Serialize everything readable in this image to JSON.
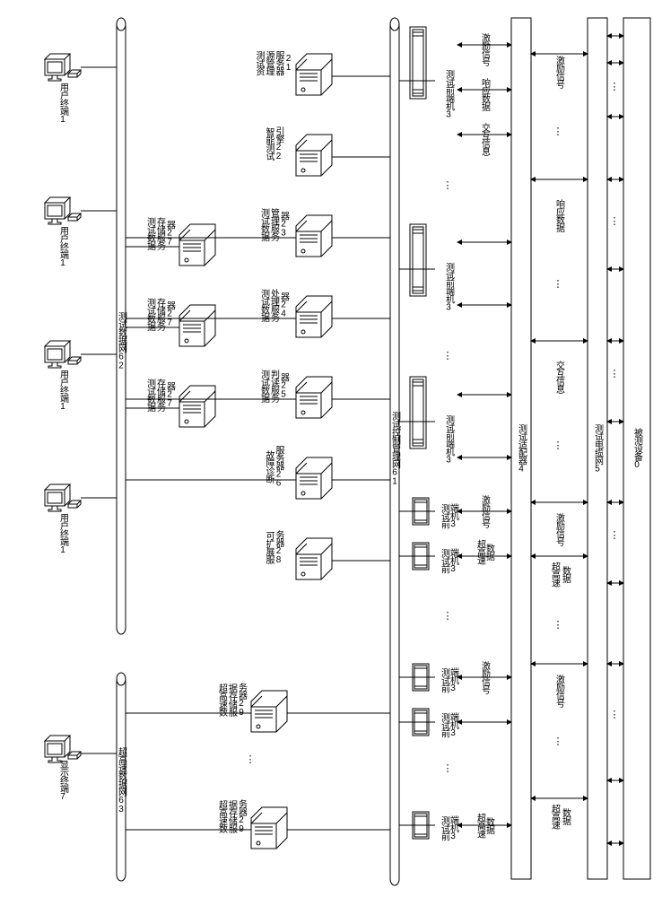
{
  "dut": {
    "label": "被测设备0"
  },
  "cable": {
    "label": "测试电缆网5"
  },
  "adapter": {
    "label": "测试适配器4"
  },
  "net1": {
    "label": "测试控制管理网61"
  },
  "net2": {
    "label": "测试数据网62"
  },
  "net3": {
    "label": "超高速数据网63"
  },
  "sig": {
    "ex": "激励信号",
    "exData": "超高速\n数据",
    "resp": "响应数据",
    "inter": "交互信息",
    "hs": "超高速\n数据"
  },
  "feGroups": [
    {
      "ex": "激励信号",
      "resp": "响应数据",
      "inter": "交互信息",
      "fe": "测试前端机3"
    },
    {
      "fe": "测试前端机3"
    },
    {
      "fe": "测试前端机3"
    },
    {
      "ex": "激励信号",
      "hs": "超高速\n数据",
      "feA": "测试前\n端机3",
      "feB": "测试前\n端机3"
    },
    {
      "ex": "激励信号",
      "feA": "测试前\n端机3",
      "feB": "测试前\n端机3"
    },
    {
      "hs": "超高速\n数据",
      "fe": "测试前\n端机3"
    }
  ],
  "servers": [
    {
      "l": "测试资\n源管理\n服务器\n21"
    },
    {
      "l": "智能测试\n引擎22"
    },
    {
      "l": "测试数据\n管理服务\n器23"
    },
    {
      "l": "测试数据\n处理服务\n器24"
    },
    {
      "l": "测试数据\n判读服务\n器25"
    },
    {
      "l": "故障诊断\n服务器26"
    },
    {
      "l": "可扩展服\n务器28"
    }
  ],
  "hsServers": [
    {
      "l": "超高速数\n据存储服\n务器29"
    },
    {
      "l": "超高速数\n据存储服\n务器29"
    }
  ],
  "storage": [
    {
      "l": "测试数据\n存储服务\n器27"
    },
    {
      "l": "测试数据\n存储服务\n器27"
    },
    {
      "l": "测试数据\n存储服务\n器27"
    }
  ],
  "terminals": [
    {
      "l": "用户终端1"
    },
    {
      "l": "用户终端1"
    },
    {
      "l": "用户终端1"
    },
    {
      "l": "用户终端1"
    }
  ],
  "display": {
    "l": "显示终端7"
  }
}
